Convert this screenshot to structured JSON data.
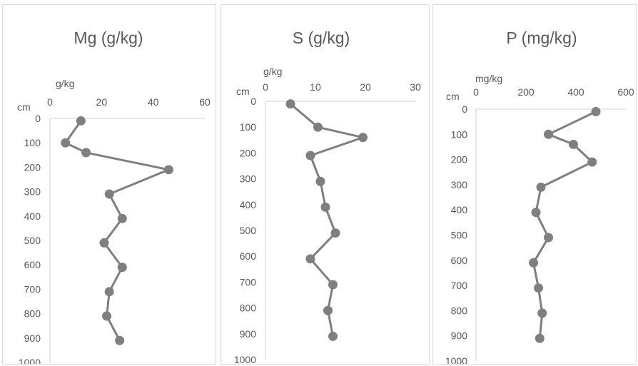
{
  "chart_data": [
    {
      "type": "line",
      "title": "Mg (g/kg)",
      "xlabel": "g/kg",
      "ylabel": "cm",
      "xlim": [
        0,
        60
      ],
      "ylim": [
        0,
        1000
      ],
      "x_ticks": [
        "0",
        "20",
        "40",
        "60"
      ],
      "y_ticks": [
        "0",
        "100",
        "200",
        "300",
        "400",
        "500",
        "600",
        "700",
        "800",
        "900",
        "1000"
      ],
      "y_inverted": true,
      "grid": false,
      "series": [
        {
          "color": "#7f7f7f",
          "x": [
            12,
            6,
            14,
            46,
            23,
            28,
            21,
            28,
            23,
            22,
            27
          ],
          "y": [
            10,
            100,
            140,
            210,
            310,
            410,
            510,
            610,
            710,
            810,
            910
          ]
        }
      ]
    },
    {
      "type": "line",
      "title": "S (g/kg)",
      "xlabel": "g/kg",
      "ylabel": "cm",
      "xlim": [
        0,
        30
      ],
      "ylim": [
        0,
        1000
      ],
      "x_ticks": [
        "0",
        "10",
        "20",
        "30"
      ],
      "y_ticks": [
        "0",
        "100",
        "200",
        "300",
        "400",
        "500",
        "600",
        "700",
        "800",
        "900",
        "1000"
      ],
      "y_inverted": true,
      "grid": false,
      "series": [
        {
          "color": "#7f7f7f",
          "x": [
            5,
            10.5,
            19.5,
            9,
            11,
            12,
            14,
            9,
            13.5,
            12.5,
            13.5
          ],
          "y": [
            10,
            100,
            140,
            210,
            310,
            410,
            510,
            610,
            710,
            810,
            910
          ]
        }
      ]
    },
    {
      "type": "line",
      "title": "P (mg/kg)",
      "xlabel": "mg/kg",
      "ylabel": "cm",
      "xlim": [
        0,
        600
      ],
      "ylim": [
        0,
        1000
      ],
      "x_ticks": [
        "0",
        "200",
        "400",
        "600"
      ],
      "y_ticks": [
        "0",
        "100",
        "200",
        "300",
        "400",
        "500",
        "600",
        "700",
        "800",
        "900",
        "1000"
      ],
      "y_inverted": true,
      "grid": false,
      "series": [
        {
          "color": "#7f7f7f",
          "x": [
            480,
            290,
            390,
            465,
            260,
            240,
            290,
            230,
            250,
            265,
            255
          ],
          "y": [
            10,
            100,
            140,
            210,
            310,
            410,
            510,
            610,
            710,
            810,
            910
          ]
        }
      ]
    }
  ]
}
